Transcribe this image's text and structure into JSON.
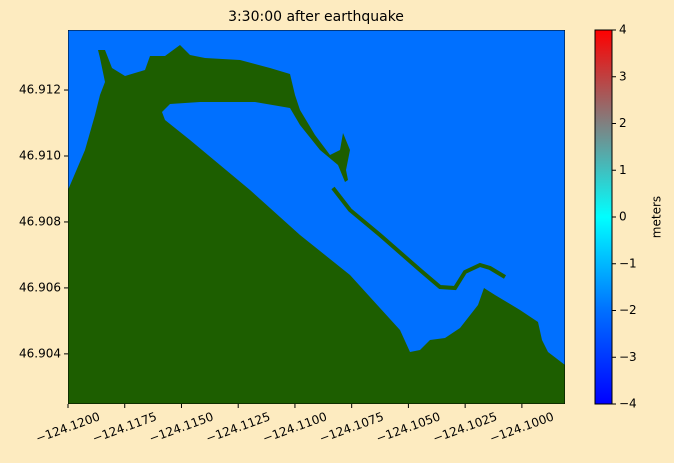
{
  "chart_data": {
    "type": "map",
    "title": "3:30:00 after earthquake",
    "xlim": [
      -124.12,
      -124.0981
    ],
    "ylim": [
      46.90248,
      46.91382
    ],
    "xticks": [
      {
        "value": -124.12,
        "label": "−124.1200"
      },
      {
        "value": -124.1175,
        "label": "−124.1175"
      },
      {
        "value": -124.115,
        "label": "−124.1150"
      },
      {
        "value": -124.1125,
        "label": "−124.1125"
      },
      {
        "value": -124.11,
        "label": "−124.1100"
      },
      {
        "value": -124.1075,
        "label": "−124.1075"
      },
      {
        "value": -124.105,
        "label": "−124.1050"
      },
      {
        "value": -124.1025,
        "label": "−124.1025"
      },
      {
        "value": -124.1,
        "label": "−124.1000"
      }
    ],
    "yticks": [
      46.904,
      46.906,
      46.908,
      {
        "value": 46.91,
        "label": "46.910"
      },
      46.912
    ],
    "water_color": "#0070ff",
    "land_color": "#1d5e00",
    "colorbar": {
      "label": "meters",
      "lim": [
        -4,
        4
      ],
      "ticks": [
        {
          "value": -4,
          "label": "−4"
        },
        {
          "value": -3,
          "label": "−3"
        },
        {
          "value": -2,
          "label": "−2"
        },
        {
          "value": -1,
          "label": "−1"
        },
        0,
        1,
        2,
        3,
        4
      ],
      "colors": [
        "#0000ff",
        "#0070ff",
        "#00ffff",
        "#808080",
        "#ff0000"
      ]
    }
  }
}
